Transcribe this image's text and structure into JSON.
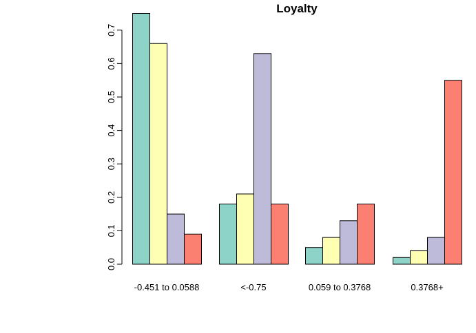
{
  "chart_data": {
    "type": "bar",
    "title": "Loyalty",
    "xlabel": "",
    "ylabel": "",
    "ylim": [
      0,
      0.75
    ],
    "yticks": [
      0.0,
      0.1,
      0.2,
      0.3,
      0.4,
      0.5,
      0.6,
      0.7
    ],
    "ytick_labels": [
      "0.0",
      "0.1",
      "0.2",
      "0.3",
      "0.4",
      "0.5",
      "0.6",
      "0.7"
    ],
    "categories": [
      "-0.451 to 0.0588",
      "<-0.75",
      "0.059 to 0.3768",
      "0.3768+"
    ],
    "series": [
      {
        "color": "#8DD3C7",
        "values": [
          0.75,
          0.18,
          0.05,
          0.02
        ]
      },
      {
        "color": "#FFFFB3",
        "values": [
          0.66,
          0.21,
          0.08,
          0.04
        ]
      },
      {
        "color": "#BEBADA",
        "values": [
          0.15,
          0.63,
          0.13,
          0.08
        ]
      },
      {
        "color": "#FB8072",
        "values": [
          0.09,
          0.18,
          0.18,
          0.55
        ]
      }
    ],
    "grid": false,
    "legend": "none"
  }
}
